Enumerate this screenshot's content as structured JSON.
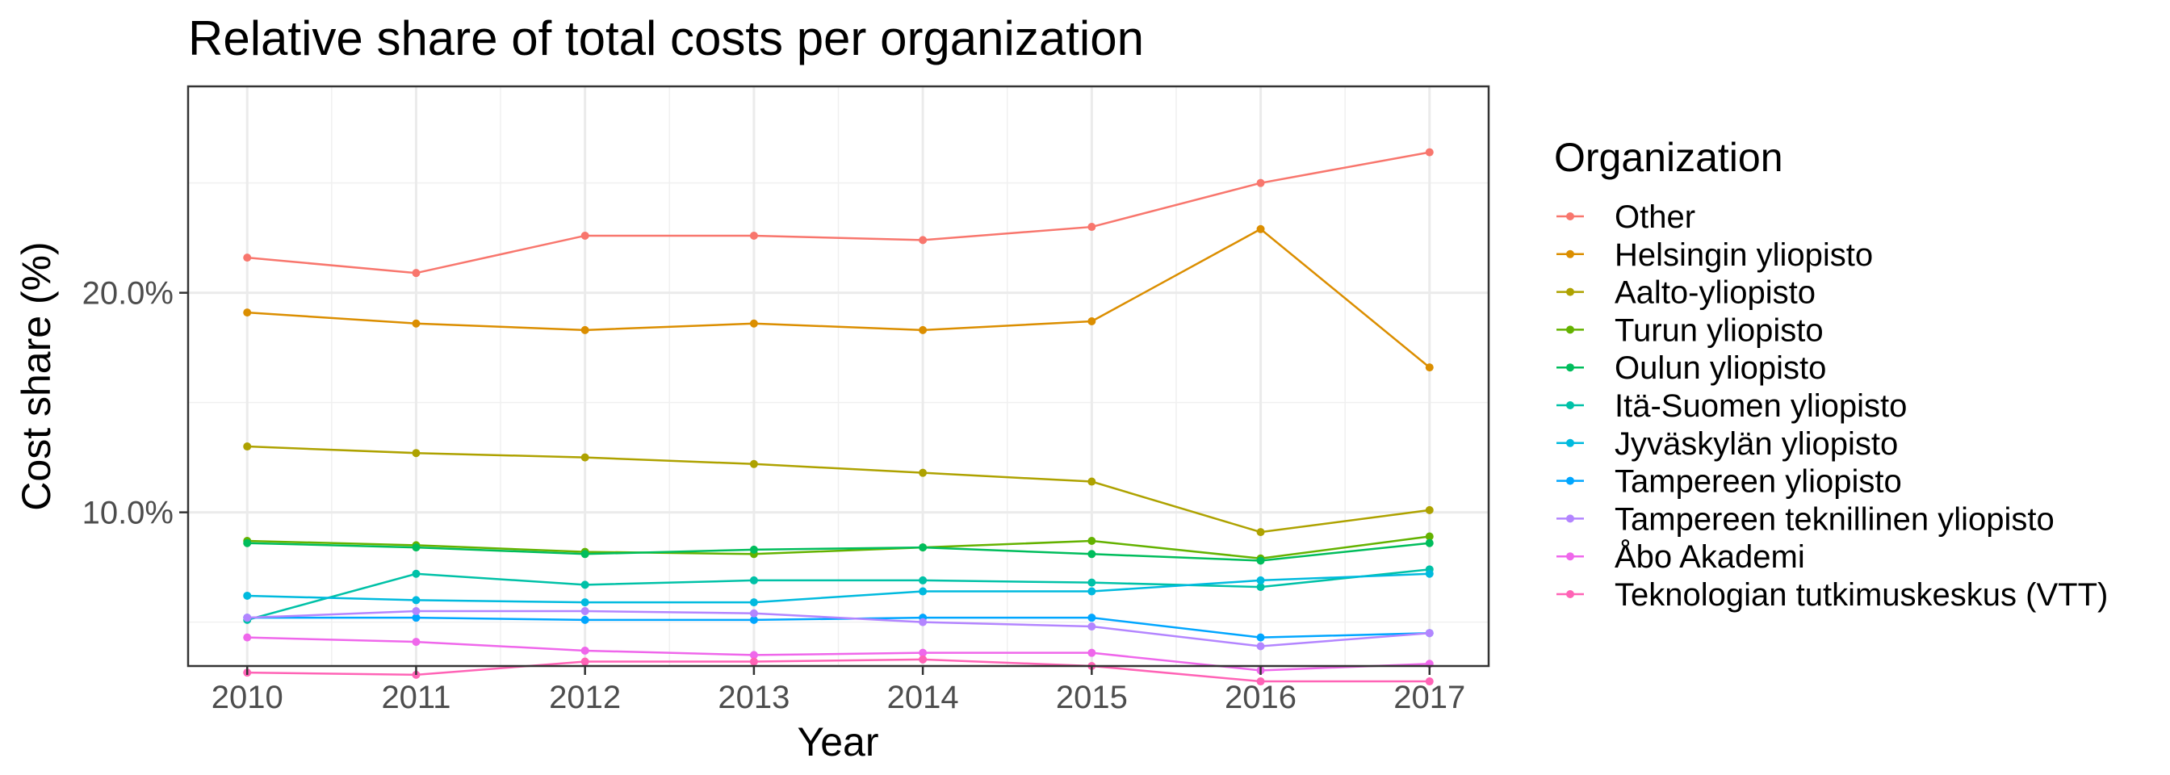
{
  "chart_data": {
    "type": "line",
    "title": "Relative share of total costs per organization",
    "xlabel": "Year",
    "ylabel": "Cost share (%)",
    "x": [
      2010,
      2011,
      2012,
      2013,
      2014,
      2015,
      2016,
      2017
    ],
    "xlim": [
      2009.65,
      2017.35
    ],
    "ylim": [
      3.0,
      29.4
    ],
    "yticks": [
      10,
      20
    ],
    "ytick_labels": [
      "10.0%",
      "20.0%"
    ],
    "grid": true,
    "legend_title": "Organization",
    "legend_position": "right",
    "series": [
      {
        "name": "Other",
        "color": "#F8766D",
        "values": [
          21.6,
          20.9,
          22.6,
          22.6,
          22.4,
          23.0,
          25.0,
          26.4
        ]
      },
      {
        "name": "Helsingin yliopisto",
        "color": "#DB8E00",
        "values": [
          19.1,
          18.6,
          18.3,
          18.6,
          18.3,
          18.7,
          22.9,
          16.6
        ]
      },
      {
        "name": "Aalto-yliopisto",
        "color": "#AEA200",
        "values": [
          13.0,
          12.7,
          12.5,
          12.2,
          11.8,
          11.4,
          9.1,
          10.1
        ]
      },
      {
        "name": "Turun yliopisto",
        "color": "#64B200",
        "values": [
          8.7,
          8.5,
          8.2,
          8.1,
          8.4,
          8.7,
          7.9,
          8.9
        ]
      },
      {
        "name": "Oulun yliopisto",
        "color": "#00BD5C",
        "values": [
          8.6,
          8.4,
          8.1,
          8.3,
          8.4,
          8.1,
          7.8,
          8.6
        ]
      },
      {
        "name": "Itä-Suomen yliopisto",
        "color": "#00C1A7",
        "values": [
          5.1,
          7.2,
          6.7,
          6.9,
          6.9,
          6.8,
          6.6,
          7.4
        ]
      },
      {
        "name": "Jyväskylän yliopisto",
        "color": "#00BADE",
        "values": [
          6.2,
          6.0,
          5.9,
          5.9,
          6.4,
          6.4,
          6.9,
          7.2
        ]
      },
      {
        "name": "Tampereen yliopisto",
        "color": "#00A6FF",
        "values": [
          5.2,
          5.2,
          5.1,
          5.1,
          5.2,
          5.2,
          4.3,
          4.5
        ]
      },
      {
        "name": "Tampereen teknillinen yliopisto",
        "color": "#B385FF",
        "values": [
          5.2,
          5.5,
          5.5,
          5.4,
          5.0,
          4.8,
          3.9,
          4.5
        ]
      },
      {
        "name": "Åbo Akademi",
        "color": "#EF67EB",
        "values": [
          4.3,
          4.1,
          3.7,
          3.5,
          3.6,
          3.6,
          2.8,
          3.1
        ]
      },
      {
        "name": "Teknologian tutkimuskeskus (VTT)",
        "color": "#FF63B6",
        "values": [
          2.7,
          2.6,
          3.2,
          3.2,
          3.3,
          3.0,
          2.3,
          2.3
        ]
      }
    ]
  }
}
